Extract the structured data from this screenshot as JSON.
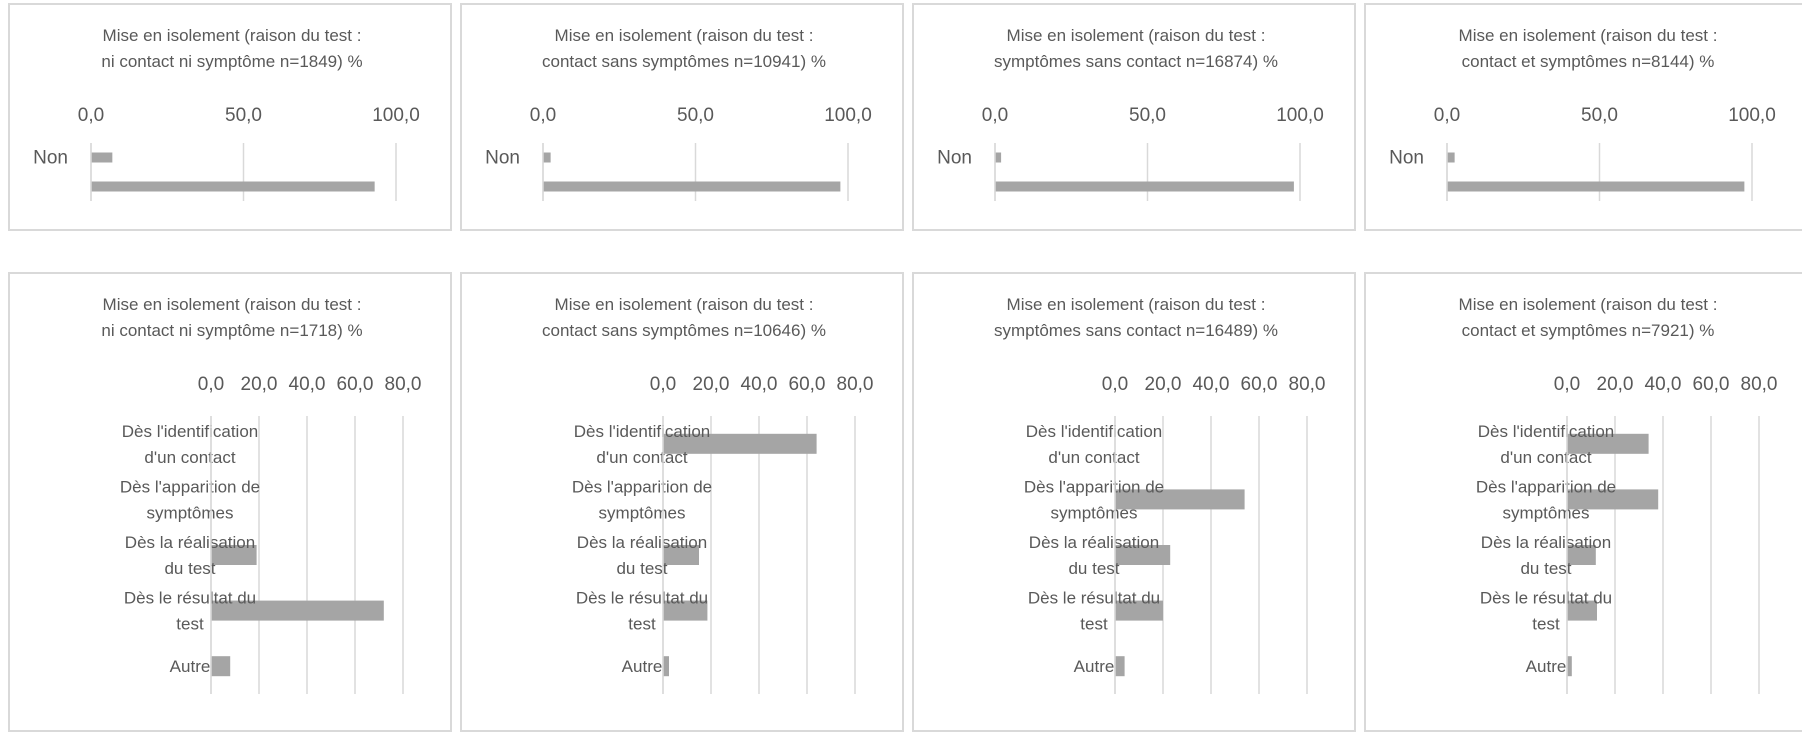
{
  "colors": {
    "bar": "#a5a5a5",
    "grid": "#d9d9d9",
    "text": "#595959",
    "border": "#d9d9d9"
  },
  "chart_data": [
    {
      "type": "bar",
      "title_lines": [
        "Mise en isolement (raison du test :",
        "ni contact ni symptôme n=1849) %"
      ],
      "xlim": [
        0,
        100
      ],
      "ticks": [
        "0,0",
        "50,0",
        "100,0"
      ],
      "categories": [
        "Non",
        ""
      ],
      "values": [
        7.0,
        93.0
      ]
    },
    {
      "type": "bar",
      "title_lines": [
        "Mise en isolement (raison du test :",
        "contact sans symptômes n=10941) %"
      ],
      "xlim": [
        0,
        100
      ],
      "ticks": [
        "0,0",
        "50,0",
        "100,0"
      ],
      "categories": [
        "Non",
        ""
      ],
      "values": [
        2.5,
        97.5
      ]
    },
    {
      "type": "bar",
      "title_lines": [
        "Mise en isolement (raison du test :",
        "symptômes sans contact n=16874) %"
      ],
      "xlim": [
        0,
        100
      ],
      "ticks": [
        "0,0",
        "50,0",
        "100,0"
      ],
      "categories": [
        "Non",
        ""
      ],
      "values": [
        2.0,
        98.0
      ]
    },
    {
      "type": "bar",
      "title_lines": [
        "Mise en isolement (raison du test :",
        "contact et symptômes n=8144) %"
      ],
      "xlim": [
        0,
        100
      ],
      "ticks": [
        "0,0",
        "50,0",
        "100,0"
      ],
      "categories": [
        "Non",
        ""
      ],
      "values": [
        2.5,
        97.5
      ]
    },
    {
      "type": "bar",
      "title_lines": [
        "Mise en isolement (raison du test :",
        "ni contact ni symptôme n=1718) %"
      ],
      "xlim": [
        0,
        80
      ],
      "ticks": [
        "0,0",
        "20,0",
        "40,0",
        "60,0",
        "80,0"
      ],
      "categories": [
        [
          "Dès l'identification",
          "d'un contact"
        ],
        [
          "Dès l'apparition de",
          "symptômes"
        ],
        [
          "Dès la réalisation",
          "du test"
        ],
        [
          "Dès le résultat du",
          "test"
        ],
        [
          "Autre"
        ]
      ],
      "values": [
        0,
        0,
        19.0,
        72.0,
        8.0
      ]
    },
    {
      "type": "bar",
      "title_lines": [
        "Mise en isolement (raison du test :",
        "contact sans symptômes n=10646) %"
      ],
      "xlim": [
        0,
        80
      ],
      "ticks": [
        "0,0",
        "20,0",
        "40,0",
        "60,0",
        "80,0"
      ],
      "categories": [
        [
          "Dès l'identification",
          "d'un contact"
        ],
        [
          "Dès l'apparition de",
          "symptômes"
        ],
        [
          "Dès la réalisation",
          "du test"
        ],
        [
          "Dès le résultat du",
          "test"
        ],
        [
          "Autre"
        ]
      ],
      "values": [
        64.0,
        0,
        15.0,
        18.5,
        2.5
      ]
    },
    {
      "type": "bar",
      "title_lines": [
        "Mise en isolement (raison du test :",
        "symptômes sans contact n=16489) %"
      ],
      "xlim": [
        0,
        80
      ],
      "ticks": [
        "0,0",
        "20,0",
        "40,0",
        "60,0",
        "80,0"
      ],
      "categories": [
        [
          "Dès l'identification",
          "d'un contact"
        ],
        [
          "Dès l'apparition de",
          "symptômes"
        ],
        [
          "Dès la réalisation",
          "du test"
        ],
        [
          "Dès le résultat du",
          "test"
        ],
        [
          "Autre"
        ]
      ],
      "values": [
        0,
        54.0,
        23.0,
        20.0,
        4.0
      ]
    },
    {
      "type": "bar",
      "title_lines": [
        "Mise en isolement (raison du test :",
        "contact et symptômes n=7921) %"
      ],
      "xlim": [
        0,
        80
      ],
      "ticks": [
        "0,0",
        "20,0",
        "40,0",
        "60,0",
        "80,0"
      ],
      "categories": [
        [
          "Dès l'identification",
          "d'un contact"
        ],
        [
          "Dès l'apparition de",
          "symptômes"
        ],
        [
          "Dès la réalisation",
          "du test"
        ],
        [
          "Dès le résultat du",
          "test"
        ],
        [
          "Autre"
        ]
      ],
      "values": [
        34.0,
        38.0,
        12.0,
        12.5,
        2.0
      ]
    }
  ]
}
